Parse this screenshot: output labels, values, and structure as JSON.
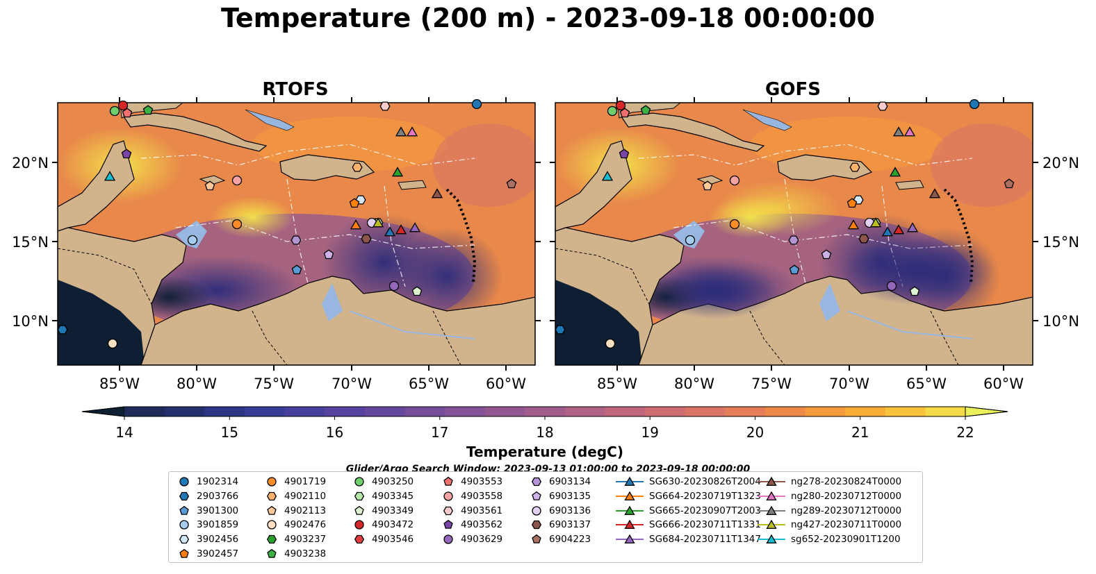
{
  "title": "Temperature (200 m) - 2023-09-18 00:00:00",
  "panels": [
    {
      "title": "RTOFS"
    },
    {
      "title": "GOFS"
    }
  ],
  "lon_ticks": [
    "85°W",
    "80°W",
    "75°W",
    "70°W",
    "65°W",
    "60°W"
  ],
  "lat_ticks": [
    "20°N",
    "15°N",
    "10°N"
  ],
  "colorbar": {
    "label": "Temperature (degC)",
    "ticks": [
      "14",
      "15",
      "16",
      "17",
      "18",
      "19",
      "20",
      "21",
      "22"
    ],
    "range": [
      14,
      22
    ],
    "colors": [
      "#1f2a58",
      "#24306e",
      "#2c3684",
      "#373d95",
      "#463f9c",
      "#56429e",
      "#65479d",
      "#744c9a",
      "#845296",
      "#925791",
      "#a15c8b",
      "#b06285",
      "#c0677d",
      "#cd6d72",
      "#d97466",
      "#e57d58",
      "#ee8a49",
      "#f59b3d",
      "#f9ad38",
      "#f9c23d",
      "#f4d949"
    ],
    "under_color": "#0e1e33",
    "over_color": "#eaf05a"
  },
  "search_window": "Glider/Argo Search Window: 2023-09-13 01:00:00 to 2023-09-18 00:00:00",
  "legend": {
    "columns": [
      [
        {
          "label": "1902314",
          "shape": "circle",
          "color": "#1f77b4"
        },
        {
          "label": "2903766",
          "shape": "hexagon",
          "color": "#1f77b4"
        },
        {
          "label": "3901300",
          "shape": "pentagon",
          "color": "#5a9bd4"
        },
        {
          "label": "3901859",
          "shape": "circle",
          "color": "#a6cdf0"
        },
        {
          "label": "3902456",
          "shape": "hexagon",
          "color": "#d2e8f8"
        },
        {
          "label": "3902457",
          "shape": "pentagon",
          "color": "#ff7f0e"
        }
      ],
      [
        {
          "label": "4901719",
          "shape": "circle",
          "color": "#ff8c26"
        },
        {
          "label": "4902110",
          "shape": "hexagon",
          "color": "#ffb26b"
        },
        {
          "label": "4902113",
          "shape": "pentagon",
          "color": "#ffc99a"
        },
        {
          "label": "4902476",
          "shape": "circle",
          "color": "#ffe0c4"
        },
        {
          "label": "4903237",
          "shape": "hexagon",
          "color": "#2ca02c"
        },
        {
          "label": "4903238",
          "shape": "pentagon",
          "color": "#3cb043"
        }
      ],
      [
        {
          "label": "4903250",
          "shape": "circle",
          "color": "#6fcf6f"
        },
        {
          "label": "4903345",
          "shape": "hexagon",
          "color": "#b5e8a8"
        },
        {
          "label": "4903349",
          "shape": "pentagon",
          "color": "#dcf5d0"
        },
        {
          "label": "4903472",
          "shape": "circle",
          "color": "#d62728"
        },
        {
          "label": "4903546",
          "shape": "hexagon",
          "color": "#e03c40"
        }
      ],
      [
        {
          "label": "4903553",
          "shape": "pentagon",
          "color": "#f07070"
        },
        {
          "label": "4903558",
          "shape": "circle",
          "color": "#f4a3a3"
        },
        {
          "label": "4903561",
          "shape": "hexagon",
          "color": "#f8cccc"
        },
        {
          "label": "4903562",
          "shape": "pentagon",
          "color": "#7b45a8"
        },
        {
          "label": "4903629",
          "shape": "circle",
          "color": "#9467bd"
        }
      ],
      [
        {
          "label": "6903134",
          "shape": "hexagon",
          "color": "#b594d6"
        },
        {
          "label": "6903135",
          "shape": "pentagon",
          "color": "#cdb3e8"
        },
        {
          "label": "6903136",
          "shape": "circle",
          "color": "#e3d0f5"
        },
        {
          "label": "6903137",
          "shape": "hexagon",
          "color": "#8c564b"
        },
        {
          "label": "6904223",
          "shape": "pentagon",
          "color": "#a9705f"
        }
      ],
      [
        {
          "label": "SG630-20230826T2004",
          "shape": "triangle",
          "color": "#1f77b4"
        },
        {
          "label": "SG664-20230719T1323",
          "shape": "triangle",
          "color": "#ff7f0e"
        },
        {
          "label": "SG665-20230907T2003",
          "shape": "triangle",
          "color": "#2ca02c"
        },
        {
          "label": "SG666-20230711T1331",
          "shape": "triangle",
          "color": "#d62728"
        },
        {
          "label": "SG684-20230711T1347",
          "shape": "triangle",
          "color": "#9467bd"
        }
      ],
      [
        {
          "label": "ng278-20230824T0000",
          "shape": "triangle",
          "color": "#8c564b"
        },
        {
          "label": "ng280-20230712T0000",
          "shape": "triangle",
          "color": "#e377c2"
        },
        {
          "label": "ng289-20230712T0000",
          "shape": "triangle",
          "color": "#7f7f7f"
        },
        {
          "label": "ng427-20230711T0000",
          "shape": "triangle",
          "color": "#bcbd22"
        },
        {
          "label": "sg652-20230901T1200",
          "shape": "triangle",
          "color": "#17becf"
        }
      ]
    ]
  }
}
